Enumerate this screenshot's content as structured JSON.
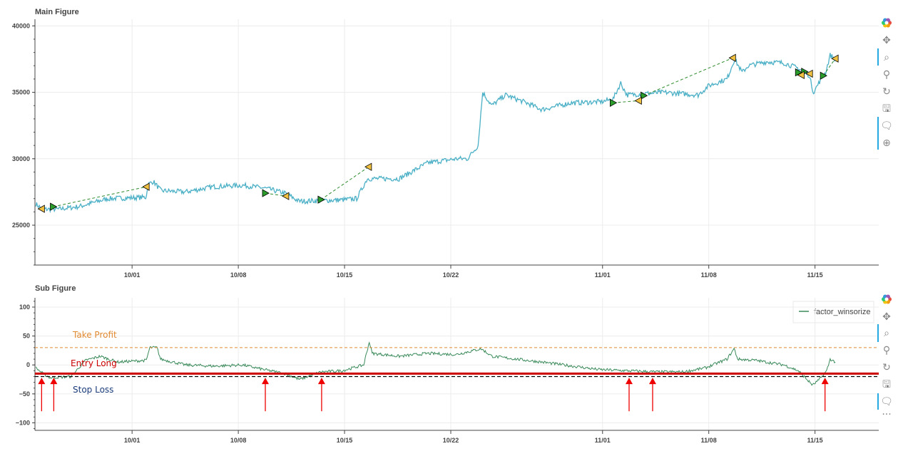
{
  "colors": {
    "price": "#4bb0c6",
    "factor": "#3a8a5a",
    "trade_line": "#2e8b2e",
    "entry": "#2a9d2a",
    "exit": "#f0c040",
    "take_profit": "#e08a30",
    "entry_long": "#cc0000",
    "stop_loss": "#000000",
    "arrow": "#ee0000",
    "stop_text": "#1a3a7a"
  },
  "toolbar": {
    "icons": [
      "bokeh-logo-icon",
      "pan-icon",
      "box-zoom-icon",
      "wheel-zoom-icon",
      "reset-icon",
      "save-icon",
      "hover-icon",
      "crosshair-icon"
    ],
    "more": "···"
  },
  "chart_data": [
    {
      "type": "line",
      "title": "Main Figure",
      "xlabel": "",
      "ylabel": "",
      "x_unit": "days since 10/01",
      "xlim": [
        -6.4,
        49.2
      ],
      "ylim": [
        22000,
        40500
      ],
      "yticks": [
        25000,
        30000,
        35000,
        40000
      ],
      "ytick_labels": [
        "25000",
        "30000",
        "35000",
        "40000"
      ],
      "xticks": [
        0,
        7,
        14,
        21,
        31,
        38,
        45
      ],
      "xtick_labels": [
        "10/01",
        "10/08",
        "10/15",
        "10/22",
        "11/01",
        "11/08",
        "11/15"
      ],
      "grid": true,
      "series": [
        {
          "name": "price",
          "points": [
            [
              -6.34,
              26600
            ],
            [
              -5.9,
              26200
            ],
            [
              -4.9,
              26200
            ],
            [
              -3.5,
              26400
            ],
            [
              -1.6,
              27000
            ],
            [
              0.9,
              27100
            ],
            [
              1.1,
              28100
            ],
            [
              1.4,
              28300
            ],
            [
              1.9,
              27600
            ],
            [
              3.5,
              27500
            ],
            [
              5.4,
              27900
            ],
            [
              7.3,
              28000
            ],
            [
              8.7,
              27800
            ],
            [
              10.1,
              27400
            ],
            [
              11,
              26800
            ],
            [
              13.8,
              26900
            ],
            [
              14.8,
              27000
            ],
            [
              15.5,
              28500
            ],
            [
              17.6,
              28500
            ],
            [
              19.5,
              29700
            ],
            [
              21.4,
              30000
            ],
            [
              22.1,
              30000
            ],
            [
              22.8,
              31000
            ],
            [
              23.1,
              35000
            ],
            [
              23.7,
              34000
            ],
            [
              24.6,
              34800
            ],
            [
              26,
              34200
            ],
            [
              27,
              33700
            ],
            [
              28.9,
              34200
            ],
            [
              31,
              34300
            ],
            [
              31.7,
              34500
            ],
            [
              32.2,
              35700
            ],
            [
              32.6,
              34800
            ],
            [
              35,
              35000
            ],
            [
              37.3,
              34800
            ],
            [
              38,
              35500
            ],
            [
              39.2,
              36000
            ],
            [
              39.7,
              37500
            ],
            [
              40.2,
              36500
            ],
            [
              40.6,
              37000
            ],
            [
              41.8,
              37300
            ],
            [
              43,
              37200
            ],
            [
              43.9,
              36800
            ],
            [
              44.6,
              36300
            ],
            [
              44.9,
              35000
            ],
            [
              45.3,
              35800
            ],
            [
              45.7,
              36500
            ],
            [
              46,
              37800
            ],
            [
              46.34,
              37500
            ]
          ]
        }
      ],
      "entries": [
        [
          -5.2,
          26390
        ],
        [
          8.78,
          27410
        ],
        [
          12.44,
          26920
        ],
        [
          31.69,
          34210
        ],
        [
          33.71,
          34750
        ],
        [
          43.9,
          36500
        ],
        [
          44.3,
          36550
        ],
        [
          45.54,
          36250
        ]
      ],
      "exits": [
        [
          -5.96,
          26230
        ],
        [
          0.94,
          27890
        ],
        [
          10.14,
          27190
        ],
        [
          15.59,
          29390
        ],
        [
          33.38,
          34370
        ],
        [
          39.58,
          37590
        ],
        [
          44.1,
          36300
        ],
        [
          44.65,
          36400
        ],
        [
          46.34,
          37540
        ]
      ],
      "trades": [
        [
          [
            -5.2,
            26390
          ],
          [
            0.94,
            27890
          ]
        ],
        [
          [
            8.78,
            27410
          ],
          [
            10.14,
            27190
          ]
        ],
        [
          [
            12.44,
            26920
          ],
          [
            15.59,
            29390
          ]
        ],
        [
          [
            31.69,
            34210
          ],
          [
            33.38,
            34370
          ]
        ],
        [
          [
            33.71,
            34750
          ],
          [
            39.58,
            37590
          ]
        ],
        [
          [
            45.54,
            36250
          ],
          [
            46.34,
            37540
          ]
        ]
      ]
    },
    {
      "type": "line",
      "title": "Sub Figure",
      "xlabel": "",
      "ylabel": "",
      "x_unit": "days since 10/01",
      "xlim": [
        -6.4,
        49.2
      ],
      "ylim": [
        -113,
        116
      ],
      "yticks": [
        -100,
        -50,
        0,
        50,
        100
      ],
      "ytick_labels": [
        "−100",
        "−50",
        "0",
        "50",
        "100"
      ],
      "xticks": [
        0,
        7,
        14,
        21,
        31,
        38,
        45
      ],
      "xtick_labels": [
        "10/01",
        "10/08",
        "10/15",
        "10/22",
        "11/01",
        "11/08",
        "11/15"
      ],
      "grid": true,
      "legend": {
        "position": "top-right",
        "entries": [
          "factor_winsorize"
        ]
      },
      "series": [
        {
          "name": "factor_winsorize",
          "points": [
            [
              -6.34,
              -5
            ],
            [
              -5.87,
              -15
            ],
            [
              -5.4,
              -22
            ],
            [
              -3.99,
              -20
            ],
            [
              -3.52,
              -5
            ],
            [
              -3.05,
              8
            ],
            [
              -2.11,
              15
            ],
            [
              -0.94,
              5
            ],
            [
              0.94,
              8
            ],
            [
              1.17,
              30
            ],
            [
              1.64,
              30
            ],
            [
              1.88,
              10
            ],
            [
              3.52,
              0
            ],
            [
              5.4,
              -2
            ],
            [
              7.28,
              0
            ],
            [
              8.69,
              -8
            ],
            [
              10.09,
              -15
            ],
            [
              11.03,
              -25
            ],
            [
              12.44,
              -12
            ],
            [
              13.85,
              -10
            ],
            [
              15.26,
              0
            ],
            [
              15.63,
              40
            ],
            [
              15.82,
              20
            ],
            [
              17.61,
              15
            ],
            [
              19.48,
              20
            ],
            [
              21.36,
              18
            ],
            [
              23.0,
              28
            ],
            [
              23.71,
              15
            ],
            [
              27.0,
              5
            ],
            [
              30.75,
              -8
            ],
            [
              32.63,
              -10
            ],
            [
              34.51,
              -12
            ],
            [
              36.38,
              -12
            ],
            [
              37.79,
              -5
            ],
            [
              39.2,
              10
            ],
            [
              39.67,
              28
            ],
            [
              39.91,
              10
            ],
            [
              41.08,
              8
            ],
            [
              42.96,
              0
            ],
            [
              43.9,
              -10
            ],
            [
              44.84,
              -35
            ],
            [
              45.3,
              -25
            ],
            [
              45.77,
              -10
            ],
            [
              46.0,
              10
            ],
            [
              46.34,
              5
            ]
          ]
        }
      ],
      "hlines": [
        {
          "label": "Take Profit",
          "value": 30,
          "style": "dashed"
        },
        {
          "label": "Entry Long",
          "value": -15,
          "style": "solid"
        },
        {
          "label": "Stop Loss",
          "value": -20,
          "style": "dashed"
        }
      ],
      "signal_arrows_x": [
        -5.96,
        -5.16,
        8.78,
        12.49,
        32.75,
        34.3,
        45.66
      ],
      "signal_arrow_range": [
        -80,
        -22
      ]
    }
  ]
}
